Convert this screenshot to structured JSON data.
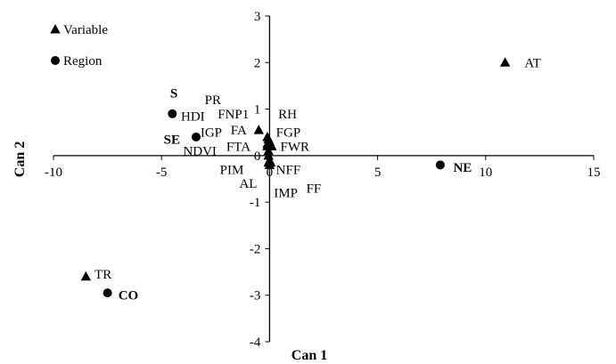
{
  "chart_data": {
    "type": "scatter",
    "xlabel": "Can 1",
    "ylabel": "Can 2",
    "xlim": [
      -10,
      15
    ],
    "ylim": [
      -4,
      3
    ],
    "xticks": [
      "-10",
      "-5",
      "0",
      "5",
      "10",
      "15"
    ],
    "yticks": [
      "-4",
      "-3",
      "-2",
      "-1",
      "0",
      "1",
      "2",
      "3"
    ],
    "xtick_values": [
      -10,
      -5,
      0,
      5,
      10,
      15
    ],
    "ytick_values": [
      -4,
      -3,
      -2,
      -1,
      0,
      1,
      2,
      3
    ],
    "legend": {
      "placement": "top-left",
      "entries": [
        {
          "label": "Variable",
          "marker": "triangle"
        },
        {
          "label": "Region",
          "marker": "circle"
        }
      ]
    },
    "series": [
      {
        "name": "Variable",
        "marker": "triangle",
        "points": [
          {
            "label": "AT",
            "x": 10.9,
            "y": 2.0
          },
          {
            "label": "TR",
            "x": -8.5,
            "y": -2.6
          },
          {
            "label": "FA",
            "x": -0.5,
            "y": 0.55
          },
          {
            "label": "FGP",
            "x": -0.1,
            "y": 0.4
          },
          {
            "label": "FWR",
            "x": 0.1,
            "y": 0.2
          },
          {
            "label": "FNP1",
            "x": -0.05,
            "y": 0.35
          },
          {
            "label": "RH",
            "x": 0.0,
            "y": 0.3
          },
          {
            "label": "FTA",
            "x": -0.05,
            "y": 0.1
          },
          {
            "label": "PIM",
            "x": -0.05,
            "y": 0.0
          },
          {
            "label": "NFF",
            "x": 0.0,
            "y": -0.1
          },
          {
            "label": "AL",
            "x": -0.05,
            "y": -0.15
          },
          {
            "label": "IMP",
            "x": 0.0,
            "y": -0.2
          },
          {
            "label": "FF",
            "x": 0.05,
            "y": -0.15
          },
          {
            "label": "IGP",
            "x": -0.1,
            "y": 0.2
          },
          {
            "label": "PR",
            "x": -0.1,
            "y": 0.25
          }
        ]
      },
      {
        "name": "Region",
        "marker": "circle",
        "points": [
          {
            "label": "NE",
            "x": 7.9,
            "y": -0.2
          },
          {
            "label": "CO",
            "x": -7.5,
            "y": -2.95
          },
          {
            "label": "S",
            "x": -4.5,
            "y": 0.9
          },
          {
            "label": "SE",
            "x": -3.4,
            "y": 0.4
          }
        ]
      }
    ],
    "labels": [
      {
        "text": "AT",
        "x": 11.8,
        "y": 2.0
      },
      {
        "text": "TR",
        "x": -8.1,
        "y": -2.55
      },
      {
        "text": "NE",
        "x": 8.5,
        "y": -0.25,
        "bold": true
      },
      {
        "text": "CO",
        "x": -7.0,
        "y": -3.0,
        "bold": true
      },
      {
        "text": "S",
        "x": -4.6,
        "y": 1.35,
        "bold": true
      },
      {
        "text": "SE",
        "x": -4.9,
        "y": 0.35,
        "bold": true
      },
      {
        "text": "HDI",
        "x": -4.1,
        "y": 0.85
      },
      {
        "text": "PR",
        "x": -3.0,
        "y": 1.2
      },
      {
        "text": "FNP1",
        "x": -2.4,
        "y": 0.9
      },
      {
        "text": "RH",
        "x": 0.4,
        "y": 0.9
      },
      {
        "text": "FA",
        "x": -1.8,
        "y": 0.55
      },
      {
        "text": "FGP",
        "x": 0.3,
        "y": 0.5
      },
      {
        "text": "IGP",
        "x": -3.2,
        "y": 0.5
      },
      {
        "text": "NDVI",
        "x": -4.0,
        "y": 0.1
      },
      {
        "text": "FTA",
        "x": -2.0,
        "y": 0.2
      },
      {
        "text": "FWR",
        "x": 0.5,
        "y": 0.2
      },
      {
        "text": "PIM",
        "x": -2.3,
        "y": -0.3
      },
      {
        "text": "NFF",
        "x": 0.3,
        "y": -0.3
      },
      {
        "text": "AL",
        "x": -1.4,
        "y": -0.6
      },
      {
        "text": "FF",
        "x": 1.7,
        "y": -0.7
      },
      {
        "text": "IMP",
        "x": 0.2,
        "y": -0.8
      }
    ]
  }
}
